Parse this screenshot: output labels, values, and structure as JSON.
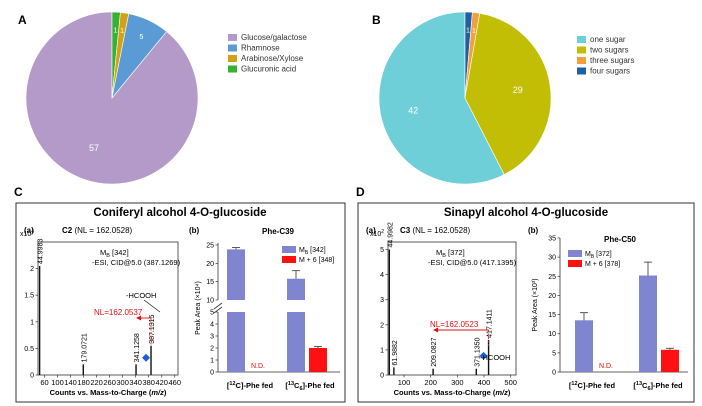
{
  "chart_data": [
    {
      "panel": "A",
      "type": "pie",
      "categories": [
        "Glucose/galactose",
        "Rhamnose",
        "Arabinose/Xylose",
        "Glucuronic acid"
      ],
      "values": [
        57,
        5,
        1,
        1
      ],
      "colors": [
        "#b39ac8",
        "#5b9bd5",
        "#d4a017",
        "#33b233"
      ],
      "legend_position": "right"
    },
    {
      "panel": "B",
      "type": "pie",
      "categories": [
        "one sugar",
        "two sugars",
        "three sugars",
        "four sugars"
      ],
      "values": [
        42,
        29,
        1,
        1
      ],
      "colors": [
        "#6ecfd8",
        "#c2bd05",
        "#f2a03d",
        "#1f5fa3"
      ],
      "legend_position": "right"
    },
    {
      "panel": "C",
      "title": "Coniferyl alcohol 4-O-glucoside",
      "spectrum": {
        "label": "(a)",
        "header": "C2 (NL = 162.0528)",
        "ion_label": "M",
        "ion_sub": "B",
        "ion_value": "[342]",
        "esi": "-ESI, CID@5.0 (387.1269)",
        "y_exponent": "x10",
        "y_exponent_power": "4",
        "y_ticks": [
          "0",
          "0.5",
          "1",
          "1.5",
          "2"
        ],
        "ylim": [
          0,
          2.5
        ],
        "x_ticks": [
          "60",
          "100",
          "140",
          "180",
          "220",
          "260",
          "300",
          "340",
          "380",
          "420",
          "460"
        ],
        "xlim": [
          40,
          470
        ],
        "xlabel": "Counts vs. Mass-to-Charge (m/z)",
        "peaks": [
          {
            "mz": 44.9983,
            "y": 2.05,
            "label": "44.9983"
          },
          {
            "mz": 179.0721,
            "y": 0.2,
            "label": "179.0721"
          },
          {
            "mz": 341.1258,
            "y": 0.2,
            "label": "341.1258"
          },
          {
            "mz": 387.1315,
            "y": 0.55,
            "label": "387.1315"
          }
        ],
        "nl_annotation": "NL=162.0537",
        "loss_annotation": "-HCOOH"
      },
      "bars": {
        "label": "(b)",
        "title": "Phe-C39",
        "type": "bar",
        "ylabel": "Peak Area (×10⁴)",
        "categories": [
          "[12C]-Phe fed",
          "[13C6]-Phe fed"
        ],
        "cat_main": [
          "]-Phe fed",
          "]-Phe fed"
        ],
        "cat_super": [
          "12",
          "13"
        ],
        "cat_sub": [
          "",
          "6"
        ],
        "cat_elem": [
          "C",
          "C"
        ],
        "series": [
          {
            "name": "MB [342]",
            "legend_main": "M",
            "legend_sub": "B",
            "legend_value": "[342]",
            "color": "#7f86cf",
            "values": [
              23.8,
              15.8
            ],
            "errors": [
              0.5,
              2.2
            ]
          },
          {
            "name": "M + 6 [348]",
            "legend_main": "M + 6 [348]",
            "color": "#ff1111",
            "values": [
              0,
              2.0
            ],
            "errors": [
              0,
              0.12
            ]
          }
        ],
        "broken_axis": true,
        "y_ticks_low": [
          "0",
          "1",
          "2",
          "3",
          "4",
          "5"
        ],
        "y_ticks_high": [
          "10",
          "15",
          "20",
          "25"
        ],
        "nd_label": "N.D."
      }
    },
    {
      "panel": "D",
      "title": "Sinapyl alcohol 4-O-glucoside",
      "spectrum": {
        "label": "(a)",
        "header": "C3 (NL = 162.0528)",
        "ion_label": "M",
        "ion_sub": "B",
        "ion_value": "[372]",
        "esi": "-ESI, CID@5.0 (417.1395)",
        "y_exponent": "x10",
        "y_exponent_power": "2",
        "y_ticks": [
          "0",
          "1",
          "2",
          "3",
          "4",
          "5"
        ],
        "ylim": [
          0,
          5.3
        ],
        "x_ticks": [
          "100",
          "200",
          "300",
          "400",
          "500"
        ],
        "xlim": [
          40,
          520
        ],
        "xlabel": "Counts vs. Mass-to-Charge (m/z)",
        "peaks": [
          {
            "mz": 44.9982,
            "y": 5.0,
            "label": "44.9982"
          },
          {
            "mz": 61.9882,
            "y": 0.3,
            "label": "61.9882"
          },
          {
            "mz": 209.0827,
            "y": 0.25,
            "label": "209.0827"
          },
          {
            "mz": 371.135,
            "y": 0.25,
            "label": "371.1350"
          },
          {
            "mz": 417.1411,
            "y": 1.4,
            "label": "417.1411"
          }
        ],
        "nl_annotation": "NL=162.0523",
        "loss_annotation": "-HCOOH"
      },
      "bars": {
        "label": "(b)",
        "title": "Phe-C50",
        "type": "bar",
        "ylabel": "Peak Area (×10³)",
        "categories": [
          "[12C]-Phe fed",
          "[13C6]-Phe fed"
        ],
        "cat_main": [
          "]-Phe fed",
          "]-Phe fed"
        ],
        "cat_super": [
          "12",
          "13"
        ],
        "cat_sub": [
          "",
          "6"
        ],
        "cat_elem": [
          "C",
          "C"
        ],
        "series": [
          {
            "name": "MB [372]",
            "legend_main": "M",
            "legend_sub": "B",
            "legend_value": "[372]",
            "color": "#7f86cf",
            "values": [
              13.5,
              25.2
            ],
            "errors": [
              2.0,
              3.5
            ]
          },
          {
            "name": "M + 6 [378]",
            "legend_main": "M + 6 [378]",
            "color": "#ff1111",
            "values": [
              0,
              5.8
            ],
            "errors": [
              0,
              0.4
            ]
          }
        ],
        "ylim": [
          0,
          35
        ],
        "y_ticks": [
          "0",
          "5",
          "10",
          "15",
          "20",
          "25",
          "30",
          "35"
        ],
        "nd_label": "N.D."
      }
    }
  ]
}
